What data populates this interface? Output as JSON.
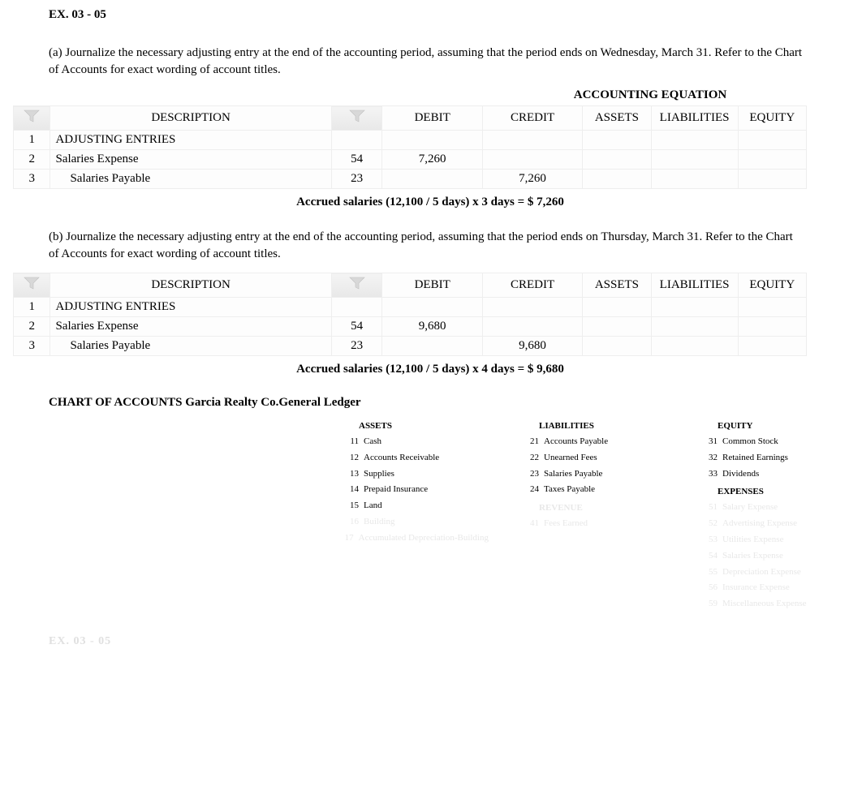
{
  "exercise_title": "EX. 03 - 05",
  "part_a_text": "(a) Journalize the necessary adjusting entry at the end of the accounting period, assuming that the period ends on Wednesday, March 31. Refer to the Chart of Accounts for exact wording of account titles.",
  "part_b_text": "(b) Journalize the necessary adjusting entry at the end of the accounting period, assuming that the period ends on Thursday, March 31. Refer to the Chart of Accounts for exact wording of account titles.",
  "equation_header": "ACCOUNTING EQUATION",
  "table_headers": {
    "description": "DESCRIPTION",
    "debit": "DEBIT",
    "credit": "CREDIT",
    "assets": "ASSETS",
    "liabilities": "LIABILITIES",
    "equity": "EQUITY"
  },
  "journal_a": {
    "rows": [
      {
        "n": "1",
        "desc": "ADJUSTING ENTRIES",
        "post": "",
        "debit": "",
        "credit": "",
        "indent": false
      },
      {
        "n": "2",
        "desc": "Salaries Expense",
        "post": "54",
        "debit": "7,260",
        "credit": "",
        "indent": false
      },
      {
        "n": "3",
        "desc": "Salaries Payable",
        "post": "23",
        "debit": "",
        "credit": "7,260",
        "indent": true
      }
    ],
    "calc": "Accrued salaries (12,100 / 5 days) x 3 days = $ 7,260"
  },
  "journal_b": {
    "rows": [
      {
        "n": "1",
        "desc": "ADJUSTING ENTRIES",
        "post": "",
        "debit": "",
        "credit": "",
        "indent": false
      },
      {
        "n": "2",
        "desc": "Salaries Expense",
        "post": "54",
        "debit": "9,680",
        "credit": "",
        "indent": false
      },
      {
        "n": "3",
        "desc": "Salaries Payable",
        "post": "23",
        "debit": "",
        "credit": "9,680",
        "indent": true
      }
    ],
    "calc": "Accrued salaries (12,100 / 5 days) x 4 days = $ 9,680"
  },
  "chart_title": "CHART OF ACCOUNTS  Garcia Realty Co.General Ledger",
  "chart": {
    "assets_label": "ASSETS",
    "liabilities_label": "LIABILITIES",
    "equity_label": "EQUITY",
    "revenue_label": "REVENUE",
    "expenses_label": "EXPENSES",
    "assets": [
      {
        "num": "11",
        "name": "Cash"
      },
      {
        "num": "12",
        "name": "Accounts Receivable"
      },
      {
        "num": "13",
        "name": "Supplies"
      },
      {
        "num": "14",
        "name": "Prepaid Insurance"
      },
      {
        "num": "15",
        "name": "Land"
      },
      {
        "num": "16",
        "name": "Building",
        "faded": true
      },
      {
        "num": "17",
        "name": "Accumulated Depreciation-Building",
        "faded": true
      }
    ],
    "liabilities": [
      {
        "num": "21",
        "name": "Accounts Payable"
      },
      {
        "num": "22",
        "name": "Unearned Fees"
      },
      {
        "num": "23",
        "name": "Salaries Payable"
      },
      {
        "num": "24",
        "name": "Taxes Payable"
      }
    ],
    "revenue": [
      {
        "num": "41",
        "name": "Fees Earned",
        "faded": true
      }
    ],
    "equity": [
      {
        "num": "31",
        "name": "Common Stock"
      },
      {
        "num": "32",
        "name": "Retained Earnings"
      },
      {
        "num": "33",
        "name": "Dividends"
      }
    ],
    "expenses": [
      {
        "num": "51",
        "name": "Salary Expense",
        "faded": true
      },
      {
        "num": "52",
        "name": "Advertising Expense",
        "faded": true
      },
      {
        "num": "53",
        "name": "Utilities Expense",
        "faded": true
      },
      {
        "num": "54",
        "name": "Salaries Expense",
        "faded": true
      },
      {
        "num": "55",
        "name": "Depreciation Expense",
        "faded": true
      },
      {
        "num": "56",
        "name": "Insurance Expense",
        "faded": true
      },
      {
        "num": "59",
        "name": "Miscellaneous Expense",
        "faded": true
      }
    ]
  },
  "page_tag": "EX. 03 - 05",
  "colors": {
    "border": "#eeeeee",
    "faded_text": "#e8e8e8",
    "icon_bg": "#f0f0f0"
  }
}
